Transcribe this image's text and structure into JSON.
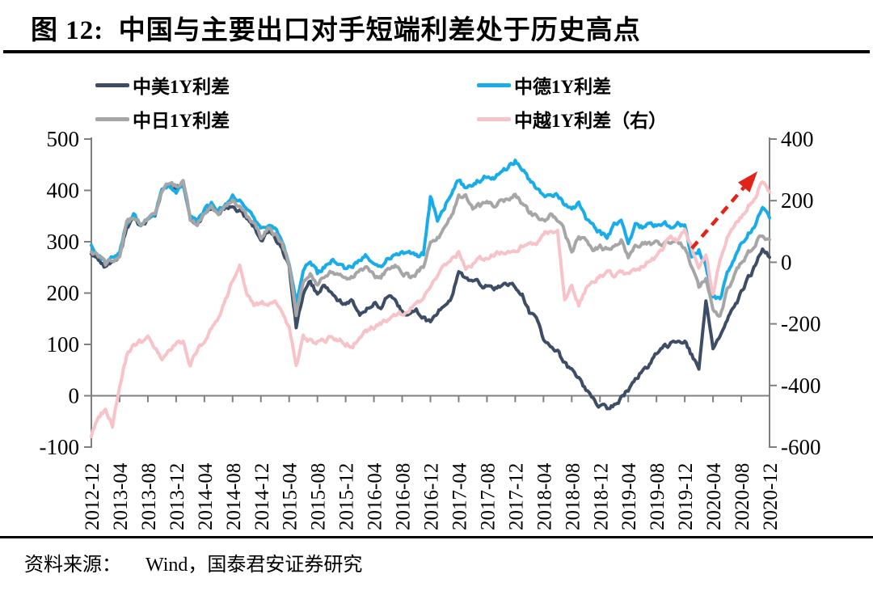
{
  "title": "图 12:  中国与主要出口对手短端利差处于历史高点",
  "source": {
    "prefix": "资料来源：",
    "text": "Wind，国泰君安证券研究"
  },
  "legend": {
    "items": [
      {
        "label": "中美1Y利差",
        "color": "#3E4D66"
      },
      {
        "label": "中德1Y利差",
        "color": "#18ACE8"
      },
      {
        "label": "中日1Y利差",
        "color": "#A6A6A6"
      },
      {
        "label": "中越1Y利差（右）",
        "color": "#F8C3C8"
      }
    ]
  },
  "chart_data": {
    "type": "line",
    "x_unit": "month",
    "x_range": [
      "2012-12",
      "2020-12"
    ],
    "x_tick_labels": [
      "2012-12",
      "2013-04",
      "2013-08",
      "2013-12",
      "2014-04",
      "2014-08",
      "2014-12",
      "2015-04",
      "2015-08",
      "2015-12",
      "2016-04",
      "2016-08",
      "2016-12",
      "2017-04",
      "2017-08",
      "2017-12",
      "2018-04",
      "2018-08",
      "2018-12",
      "2019-04",
      "2019-08",
      "2019-12",
      "2020-04",
      "2020-08",
      "2020-12"
    ],
    "left_axis": {
      "min": -100,
      "max": 500,
      "ticks": [
        500,
        400,
        300,
        200,
        100,
        0,
        -100
      ]
    },
    "right_axis": {
      "min": -600,
      "max": 400,
      "ticks": [
        400,
        200,
        0,
        -200,
        -400,
        -600
      ]
    },
    "series": [
      {
        "name": "中美1Y利差",
        "axis": "left",
        "color": "#3E4D66",
        "values": [
          278,
          266,
          252,
          262,
          268,
          330,
          345,
          330,
          342,
          352,
          398,
          412,
          402,
          415,
          342,
          330,
          356,
          368,
          354,
          362,
          368,
          360,
          342,
          330,
          302,
          318,
          308,
          288,
          248,
          135,
          195,
          225,
          196,
          218,
          200,
          186,
          178,
          184,
          155,
          172,
          182,
          170,
          195,
          180,
          163,
          158,
          165,
          152,
          142,
          162,
          178,
          192,
          242,
          228,
          222,
          218,
          212,
          208,
          214,
          220,
          212,
          196,
          162,
          148,
          112,
          95,
          85,
          62,
          50,
          35,
          12,
          -5,
          -20,
          -25,
          -18,
          -5,
          12,
          30,
          48,
          62,
          80,
          92,
          102,
          112,
          105,
          78,
          48,
          185,
          95,
          118,
          145,
          172,
          200,
          228,
          252,
          285,
          272
        ]
      },
      {
        "name": "中德1Y利差",
        "axis": "left",
        "color": "#18ACE8",
        "values": [
          292,
          278,
          258,
          270,
          278,
          338,
          352,
          336,
          348,
          358,
          402,
          408,
          398,
          414,
          348,
          338,
          362,
          375,
          360,
          370,
          390,
          380,
          358,
          346,
          322,
          332,
          322,
          302,
          262,
          178,
          245,
          262,
          238,
          252,
          262,
          255,
          245,
          252,
          265,
          272,
          258,
          252,
          268,
          275,
          280,
          277,
          272,
          277,
          388,
          345,
          368,
          398,
          420,
          405,
          412,
          420,
          428,
          425,
          435,
          445,
          458,
          442,
          420,
          402,
          385,
          395,
          388,
          372,
          360,
          375,
          342,
          330,
          318,
          308,
          330,
          342,
          295,
          335,
          328,
          338,
          330,
          338,
          332,
          338,
          330,
          268,
          282,
          255,
          195,
          185,
          240,
          270,
          295,
          315,
          335,
          362,
          348
        ]
      },
      {
        "name": "中日1Y利差",
        "axis": "left",
        "color": "#A6A6A6",
        "values": [
          284,
          272,
          255,
          265,
          272,
          334,
          348,
          332,
          344,
          354,
          400,
          415,
          408,
          418,
          345,
          333,
          358,
          370,
          356,
          365,
          376,
          368,
          348,
          338,
          310,
          325,
          315,
          295,
          255,
          158,
          225,
          240,
          218,
          235,
          242,
          235,
          225,
          232,
          240,
          248,
          235,
          230,
          248,
          252,
          238,
          232,
          238,
          252,
          305,
          310,
          322,
          352,
          386,
          390,
          368,
          370,
          376,
          372,
          378,
          386,
          392,
          375,
          355,
          350,
          342,
          350,
          345,
          320,
          280,
          310,
          300,
          288,
          292,
          285,
          295,
          303,
          272,
          295,
          298,
          295,
          298,
          295,
          298,
          300,
          285,
          250,
          212,
          228,
          165,
          152,
          205,
          235,
          258,
          278,
          295,
          315,
          300
        ]
      },
      {
        "name": "中越1Y利差（右）",
        "axis": "right",
        "color": "#F8C3C8",
        "values": [
          -565,
          -495,
          -480,
          -530,
          -400,
          -305,
          -270,
          -258,
          -235,
          -275,
          -320,
          -290,
          -262,
          -262,
          -335,
          -285,
          -255,
          -215,
          -180,
          -120,
          -60,
          -10,
          -105,
          -140,
          -130,
          -135,
          -130,
          -170,
          -210,
          -330,
          -245,
          -255,
          -260,
          -255,
          -240,
          -250,
          -265,
          -268,
          -245,
          -225,
          -210,
          -200,
          -185,
          -175,
          -165,
          -150,
          -140,
          -110,
          -75,
          -40,
          -15,
          10,
          30,
          -25,
          -5,
          10,
          15,
          25,
          30,
          35,
          40,
          55,
          70,
          60,
          95,
          100,
          105,
          -120,
          -75,
          -140,
          -85,
          -60,
          -45,
          -30,
          -45,
          -35,
          -40,
          -25,
          -15,
          5,
          15,
          50,
          85,
          70,
          100,
          45,
          -15,
          25,
          -105,
          15,
          80,
          120,
          150,
          185,
          215,
          262,
          228
        ]
      }
    ],
    "annotation_arrow": {
      "color": "#E2231A",
      "style": "dashed",
      "from": {
        "month_index": 85,
        "right_value": 45
      },
      "to": {
        "month_index": 94.3,
        "right_value": 295
      }
    }
  }
}
